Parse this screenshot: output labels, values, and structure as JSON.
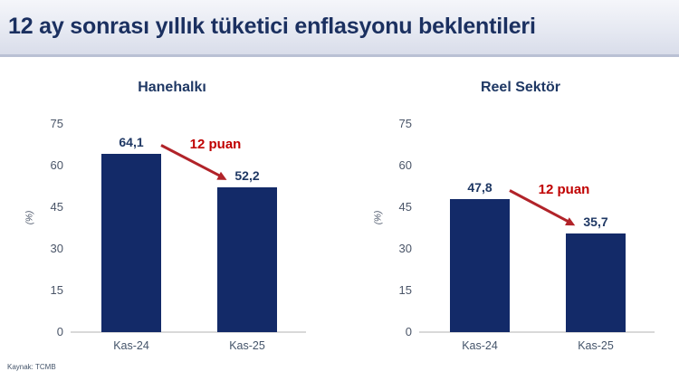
{
  "page": {
    "title": "12 ay sonrası yıllık tüketici enflasyonu beklentileri",
    "source": "Kaynak: TCMB"
  },
  "colors": {
    "bar_navy": "#132a68",
    "value_navy": "#1f3864",
    "annotation_red": "#c00000",
    "arrow_red": "#b12329",
    "tick_gray": "#4a5568",
    "baseline_gray": "#d9d9d9"
  },
  "chart_data": [
    {
      "type": "bar",
      "title": "Hanehalkı",
      "categories": [
        "Kas-24",
        "Kas-25"
      ],
      "values": [
        64.1,
        52.2
      ],
      "value_labels": [
        "64,1",
        "52,2"
      ],
      "annotation": "12 puan",
      "ylabel": "(%)",
      "yticks": [
        0,
        15,
        30,
        45,
        60,
        75
      ],
      "ylim": [
        0,
        75
      ],
      "grid": false,
      "legend": false
    },
    {
      "type": "bar",
      "title": "Reel Sektör",
      "categories": [
        "Kas-24",
        "Kas-25"
      ],
      "values": [
        47.8,
        35.7
      ],
      "value_labels": [
        "47,8",
        "35,7"
      ],
      "annotation": "12 puan",
      "ylabel": "(%)",
      "yticks": [
        0,
        15,
        30,
        45,
        60,
        75
      ],
      "ylim": [
        0,
        75
      ],
      "grid": false,
      "legend": false
    }
  ]
}
